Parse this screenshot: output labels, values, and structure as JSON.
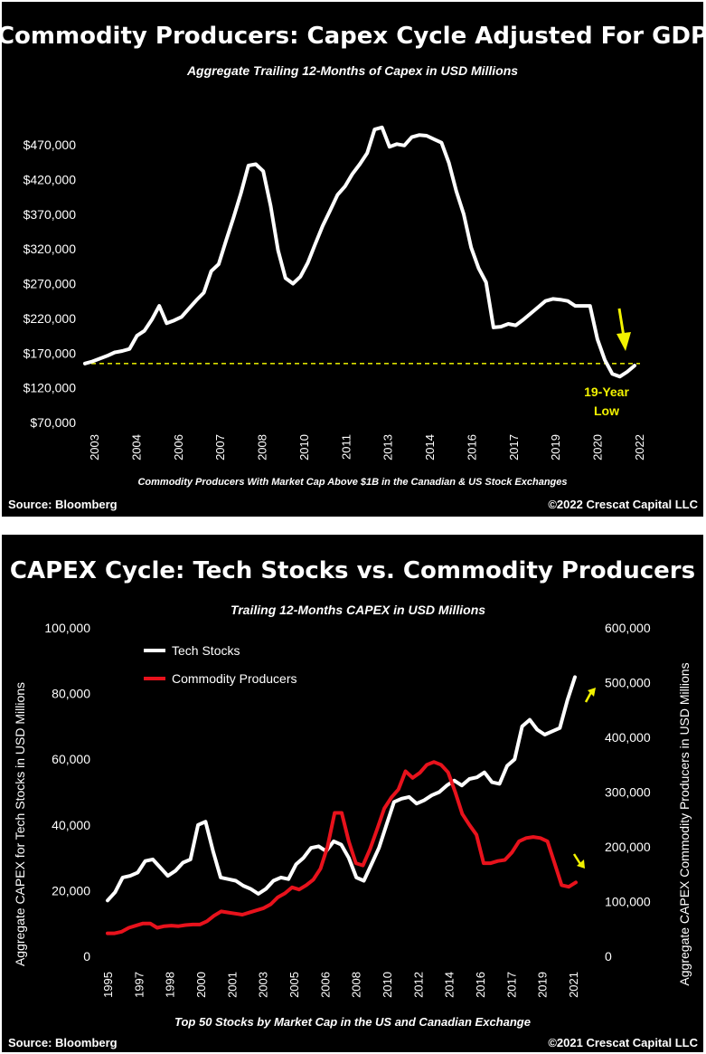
{
  "colors": {
    "background": "#000000",
    "text": "#ffffff",
    "line_primary": "#ffffff",
    "line_secondary": "#e8121c",
    "accent": "#f2f200"
  },
  "chart_data": [
    {
      "type": "line",
      "title": "Commodity Producers: Capex Cycle Adjusted For GDP",
      "subtitle": "Aggregate Trailing 12-Months of Capex in USD Millions",
      "footnote": "Commodity Producers With Market Cap Above $1B in the Canadian & US Stock Exchanges",
      "source": "Source: Bloomberg",
      "copyright": "©2022 Crescat Capital LLC",
      "annotation": "19-Year Low",
      "annotation_lines": [
        "19-Year",
        "Low"
      ],
      "reference_line": 155000,
      "ylim": [
        70000,
        500000
      ],
      "grid": false,
      "y_tick_values": [
        70000,
        120000,
        170000,
        220000,
        270000,
        320000,
        370000,
        420000,
        470000
      ],
      "y_tick_labels": [
        "$70,000",
        "$120,000",
        "$170,000",
        "$220,000",
        "$270,000",
        "$320,000",
        "$370,000",
        "$420,000",
        "$470,000"
      ],
      "x_tick_labels": [
        "2003",
        "2004",
        "2006",
        "2007",
        "2008",
        "2010",
        "2011",
        "2013",
        "2014",
        "2016",
        "2017",
        "2019",
        "2020",
        "2022"
      ],
      "series": [
        {
          "values": [
            155000,
            158000,
            162000,
            166000,
            171000,
            173000,
            176000,
            195000,
            202000,
            218000,
            238000,
            213000,
            217000,
            222000,
            234000,
            246000,
            257000,
            288000,
            298000,
            332000,
            365000,
            400000,
            440000,
            442000,
            432000,
            382000,
            318000,
            278000,
            270000,
            280000,
            300000,
            327000,
            353000,
            375000,
            398000,
            410000,
            428000,
            442000,
            458000,
            492000,
            495000,
            467000,
            471000,
            469000,
            481000,
            484000,
            483000,
            478000,
            473000,
            444000,
            403000,
            370000,
            322000,
            292000,
            272000,
            207000,
            208000,
            212000,
            210000,
            218000,
            227000,
            236000,
            245000,
            248000,
            247000,
            245000,
            238000,
            238000,
            238000,
            190000,
            160000,
            140000,
            136000,
            143000,
            152000
          ]
        }
      ]
    },
    {
      "type": "line",
      "title": "CAPEX Cycle: Tech Stocks vs. Commodity Producers",
      "subtitle": "Trailing 12-Months CAPEX in  USD Millions",
      "footnote": "Top 50 Stocks by Market Cap in the US and Canadian Exchange",
      "source": "Source: Bloomberg",
      "copyright": "©2021 Crescat Capital LLC",
      "ylabel_left": "Aggregate CAPEX for Tech Stocks in USD Millions",
      "ylabel_right": "Aggregate CAPEX Commodity Producers in USD Millions",
      "ylim_left": [
        0,
        100000
      ],
      "ylim_right": [
        0,
        600000
      ],
      "grid": false,
      "legend_position": "top-left",
      "y_left_tick_values": [
        0,
        20000,
        40000,
        60000,
        80000,
        100000
      ],
      "y_left_tick_labels": [
        "0",
        "20,000",
        "40,000",
        "60,000",
        "80,000",
        "100,000"
      ],
      "y_right_tick_values": [
        0,
        100000,
        200000,
        300000,
        400000,
        500000,
        600000
      ],
      "y_right_tick_labels": [
        "0",
        "100,000",
        "200,000",
        "300,000",
        "400,000",
        "500,000",
        "600,000"
      ],
      "x_tick_labels": [
        "1995",
        "1997",
        "1998",
        "2000",
        "2001",
        "2003",
        "2005",
        "2006",
        "2008",
        "2010",
        "2012",
        "2014",
        "2016",
        "2017",
        "2019",
        "2021"
      ],
      "series": [
        {
          "name": "Tech Stocks",
          "axis": "left",
          "values": [
            17000,
            19500,
            24000,
            24500,
            25500,
            29000,
            29500,
            27000,
            24500,
            26000,
            28500,
            29500,
            40000,
            41000,
            32000,
            24000,
            23500,
            23000,
            21500,
            20500,
            19000,
            20500,
            23000,
            24000,
            23500,
            28000,
            30000,
            33000,
            33500,
            32000,
            35000,
            34000,
            30000,
            24000,
            23000,
            28000,
            33000,
            40000,
            47000,
            48000,
            48500,
            46500,
            47500,
            49000,
            50000,
            52000,
            53500,
            52000,
            54000,
            54500,
            56000,
            53000,
            52500,
            58000,
            60000,
            70000,
            72000,
            69000,
            67500,
            68500,
            69500,
            78000,
            85000
          ]
        },
        {
          "name": "Commodity Producers",
          "axis": "right",
          "values": [
            42000,
            42000,
            45000,
            52000,
            56000,
            60000,
            60000,
            52000,
            55000,
            56000,
            55000,
            57000,
            58000,
            58000,
            64000,
            74000,
            82000,
            80000,
            78000,
            76000,
            80000,
            84000,
            88000,
            95000,
            108000,
            115000,
            126000,
            122000,
            130000,
            140000,
            160000,
            200000,
            262000,
            262000,
            210000,
            170000,
            166000,
            196000,
            232000,
            270000,
            290000,
            305000,
            338000,
            326000,
            335000,
            350000,
            355000,
            350000,
            336000,
            300000,
            260000,
            240000,
            222000,
            170000,
            170000,
            174000,
            176000,
            190000,
            210000,
            216000,
            218000,
            216000,
            210000,
            170000,
            130000,
            127000,
            135000
          ]
        }
      ]
    }
  ]
}
